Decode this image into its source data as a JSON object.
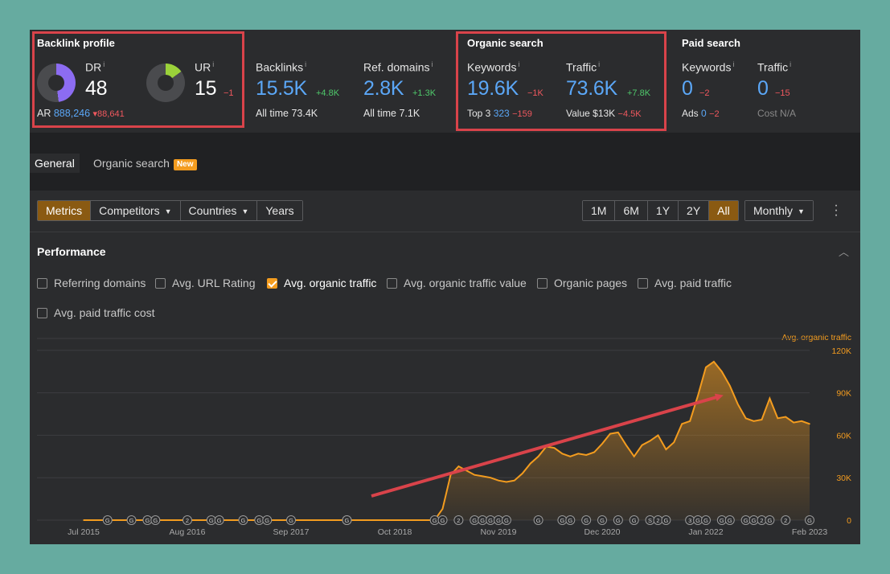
{
  "backlink_profile": {
    "title": "Backlink profile",
    "dr": {
      "label": "DR",
      "value": "48"
    },
    "ur": {
      "label": "UR",
      "value": "15",
      "delta": "−1"
    },
    "ar": {
      "label": "AR",
      "value": "888,246",
      "delta": "▾88,641"
    },
    "colors": {
      "dr_ring": "#8c6cf2",
      "ur_ring": "#9bd23a"
    }
  },
  "backlinks": {
    "label": "Backlinks",
    "value": "15.5K",
    "delta": "+4.8K",
    "sub": "All time 73.4K"
  },
  "ref_domains": {
    "label": "Ref. domains",
    "value": "2.8K",
    "delta": "+1.3K",
    "sub": "All time 7.1K"
  },
  "organic_search": {
    "title": "Organic search",
    "keywords": {
      "label": "Keywords",
      "value": "19.6K",
      "delta": "−1K",
      "sub_label": "Top 3",
      "sub_value": "323",
      "sub_delta": "−159"
    },
    "traffic": {
      "label": "Traffic",
      "value": "73.6K",
      "delta": "+7.8K",
      "sub_label": "Value",
      "sub_value": "$13K",
      "sub_delta": "−4.5K"
    }
  },
  "paid_search": {
    "title": "Paid search",
    "keywords": {
      "label": "Keywords",
      "value": "0",
      "delta": "−2",
      "sub_label": "Ads",
      "sub_value": "0",
      "sub_delta": "−2"
    },
    "traffic": {
      "label": "Traffic",
      "value": "0",
      "delta": "−15",
      "sub_label": "Cost",
      "sub_value": "N/A"
    }
  },
  "tabs": [
    {
      "label": "General",
      "active": true
    },
    {
      "label": "Organic search",
      "badge": "New"
    }
  ],
  "toolbar": {
    "view_buttons": [
      "Metrics",
      "Competitors",
      "Countries",
      "Years"
    ],
    "range_buttons": [
      "1M",
      "6M",
      "1Y",
      "2Y",
      "All"
    ],
    "interval_select": "Monthly"
  },
  "performance": {
    "title": "Performance",
    "checkboxes": [
      {
        "label": "Referring domains",
        "checked": false
      },
      {
        "label": "Avg. URL Rating",
        "checked": false
      },
      {
        "label": "Avg. organic traffic",
        "checked": true
      },
      {
        "label": "Avg. organic traffic value",
        "checked": false
      },
      {
        "label": "Organic pages",
        "checked": false
      },
      {
        "label": "Avg. paid traffic",
        "checked": false
      },
      {
        "label": "Avg. paid traffic cost",
        "checked": false
      }
    ]
  },
  "chart_data": {
    "type": "area",
    "series": [
      {
        "name": "Avg. organic traffic",
        "color": "#f39c1f",
        "x": [
          "2015-07",
          "2015-10",
          "2016-01",
          "2016-04",
          "2016-07",
          "2016-10",
          "2017-01",
          "2017-04",
          "2017-07",
          "2017-10",
          "2018-01",
          "2018-04",
          "2018-07",
          "2018-10",
          "2019-01",
          "2019-03",
          "2019-04",
          "2019-05",
          "2019-06",
          "2019-07",
          "2019-08",
          "2019-09",
          "2019-10",
          "2019-11",
          "2019-12",
          "2020-01",
          "2020-02",
          "2020-03",
          "2020-04",
          "2020-05",
          "2020-06",
          "2020-07",
          "2020-08",
          "2020-09",
          "2020-10",
          "2020-11",
          "2020-12",
          "2021-01",
          "2021-02",
          "2021-03",
          "2021-04",
          "2021-05",
          "2021-06",
          "2021-07",
          "2021-08",
          "2021-09",
          "2021-10",
          "2021-11",
          "2021-12",
          "2022-01",
          "2022-02",
          "2022-03",
          "2022-04",
          "2022-05",
          "2022-06",
          "2022-07",
          "2022-08",
          "2022-09",
          "2022-10",
          "2022-11",
          "2022-12",
          "2023-01",
          "2023-02"
        ],
        "values": [
          0,
          0,
          0,
          0,
          0,
          0,
          0,
          0,
          0,
          0,
          0,
          0,
          0,
          0,
          0,
          0,
          8000,
          32000,
          38000,
          35000,
          32000,
          31000,
          30000,
          28000,
          27000,
          28000,
          33000,
          40000,
          45000,
          52000,
          51000,
          47000,
          45000,
          47000,
          46000,
          48000,
          54000,
          61000,
          62000,
          53000,
          45000,
          53000,
          56000,
          60000,
          50000,
          55000,
          68000,
          70000,
          88000,
          108000,
          112000,
          105000,
          95000,
          82000,
          72000,
          70000,
          71000,
          86000,
          72000,
          73000,
          69000,
          70000,
          68000
        ]
      }
    ],
    "x_tick_labels": [
      "Jul 2015",
      "Aug 2016",
      "Sep 2017",
      "Oct 2018",
      "Nov 2019",
      "Dec 2020",
      "Jan 2022",
      "Feb 2023"
    ],
    "x_tick_dates": [
      "2015-07",
      "2016-08",
      "2017-09",
      "2018-10",
      "2019-11",
      "2020-12",
      "2022-01",
      "2023-02"
    ],
    "y_tick_labels": [
      "0",
      "30K",
      "60K",
      "90K",
      "120K"
    ],
    "y_tick_values": [
      0,
      30000,
      60000,
      90000,
      120000
    ],
    "ylim": [
      0,
      125000
    ],
    "y_axis_title": "Avg. organic traffic",
    "grid": true,
    "annotation_markers": [
      "G",
      "G",
      "G",
      "G",
      "2",
      "G",
      "G",
      "G",
      "G",
      "G",
      "G",
      "2",
      "G",
      "G",
      "G",
      "2",
      "G",
      "G",
      "G",
      "G",
      "G",
      "G",
      "G",
      "G",
      "G",
      "G",
      "G",
      "G",
      "S",
      "2",
      "G",
      "3",
      "G",
      "G",
      "G",
      "G",
      "G",
      "G",
      "2",
      "G",
      "2",
      "G"
    ],
    "annotation_marker_dates": [
      "2015-10",
      "2016-01",
      "2016-03",
      "2016-04",
      "2016-08",
      "2016-11",
      "2016-12",
      "2017-03",
      "2017-05",
      "2017-06",
      "2017-09",
      "2018-04",
      "2018-04",
      "2019-03",
      "2019-04",
      "2019-06",
      "2019-08",
      "2019-09",
      "2019-10",
      "2019-11",
      "2019-12",
      "2020-04",
      "2020-07",
      "2020-08",
      "2020-10",
      "2020-12",
      "2021-02",
      "2021-04",
      "2021-06",
      "2021-07",
      "2021-08",
      "2021-11",
      "2021-12",
      "2022-01",
      "2022-03",
      "2022-04",
      "2022-06",
      "2022-07",
      "2022-08",
      "2022-09",
      "2022-11",
      "2023-02"
    ]
  }
}
